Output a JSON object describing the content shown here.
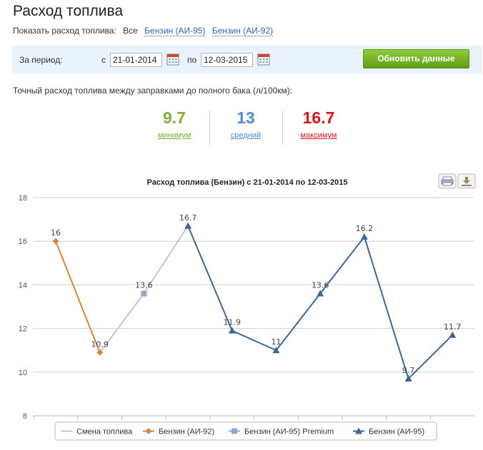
{
  "page": {
    "title": "Расход топлива"
  },
  "filter": {
    "label": "Показать расход топлива:",
    "options": [
      "Все",
      "Бензин (АИ-95)",
      "Бензин (АИ-92)"
    ]
  },
  "period": {
    "label": "За период:",
    "from_label": "с",
    "from_value": "21-01-2014",
    "to_label": "по",
    "to_value": "12-03-2015",
    "refresh_button": "Обновить данные"
  },
  "exact_text": "Точный расход топлива между заправками до полного бака (л/100км):",
  "stats": [
    {
      "value": "9.7",
      "caption": "минимум",
      "color": "#7fae3b"
    },
    {
      "value": "13",
      "caption": "средний",
      "color": "#4e8ccb"
    },
    {
      "value": "16.7",
      "caption": "максимум",
      "color": "#d9131b"
    }
  ],
  "chart_data": {
    "type": "line",
    "title": "Расход топлива (Бензин) с 21-01-2014 по 12-03-2015",
    "ylim": [
      8,
      18
    ],
    "yticks": [
      8,
      10,
      12,
      14,
      16,
      18
    ],
    "grid": true,
    "legend_position": "bottom",
    "icons": [
      "print-icon",
      "download-icon"
    ],
    "legend": [
      {
        "name": "Смена топлива",
        "color": "#c6c6c6",
        "marker": "none"
      },
      {
        "name": "Бензин (АИ-92)",
        "color": "#d9853b",
        "marker": "diamond"
      },
      {
        "name": "Бензин (АИ-95) Premium",
        "color": "#8fa9cf",
        "marker": "square"
      },
      {
        "name": "Бензин (АИ-95)",
        "color": "#3d6696",
        "marker": "triangle"
      }
    ],
    "points": [
      {
        "x": 1,
        "y": 16,
        "label": "16",
        "marker": "diamond",
        "color": "#d9853b"
      },
      {
        "x": 2,
        "y": 10.9,
        "label": "10.9",
        "marker": "diamond",
        "color": "#d9853b"
      },
      {
        "x": 3,
        "y": 13.6,
        "label": "13.6",
        "marker": "square",
        "color": "#8fa9cf"
      },
      {
        "x": 4,
        "y": 16.7,
        "label": "16.7",
        "marker": "triangle",
        "color": "#3d6696"
      },
      {
        "x": 5,
        "y": 11.9,
        "label": "11.9",
        "marker": "triangle",
        "color": "#3d6696"
      },
      {
        "x": 6,
        "y": 11,
        "label": "11",
        "marker": "triangle",
        "color": "#3d6696"
      },
      {
        "x": 7,
        "y": 13.6,
        "label": "13.6",
        "marker": "triangle",
        "color": "#3d6696"
      },
      {
        "x": 8,
        "y": 16.2,
        "label": "16.2",
        "marker": "triangle",
        "color": "#3d6696"
      },
      {
        "x": 9,
        "y": 9.7,
        "label": "9.7",
        "marker": "triangle",
        "color": "#3d6696"
      },
      {
        "x": 10,
        "y": 11.7,
        "label": "11.7",
        "marker": "triangle",
        "color": "#3d6696"
      }
    ],
    "segments": [
      {
        "from": 1,
        "to": 2,
        "color": "#d9853b"
      },
      {
        "from": 2,
        "to": 3,
        "color": "#c6c6c6"
      },
      {
        "from": 3,
        "to": 4,
        "color": "#c6c6c6"
      },
      {
        "from": 4,
        "to": 5,
        "color": "#3d6696"
      },
      {
        "from": 5,
        "to": 6,
        "color": "#3d6696"
      },
      {
        "from": 6,
        "to": 7,
        "color": "#3d6696"
      },
      {
        "from": 7,
        "to": 8,
        "color": "#3d6696"
      },
      {
        "from": 8,
        "to": 9,
        "color": "#3d6696"
      },
      {
        "from": 9,
        "to": 10,
        "color": "#3d6696"
      }
    ]
  }
}
